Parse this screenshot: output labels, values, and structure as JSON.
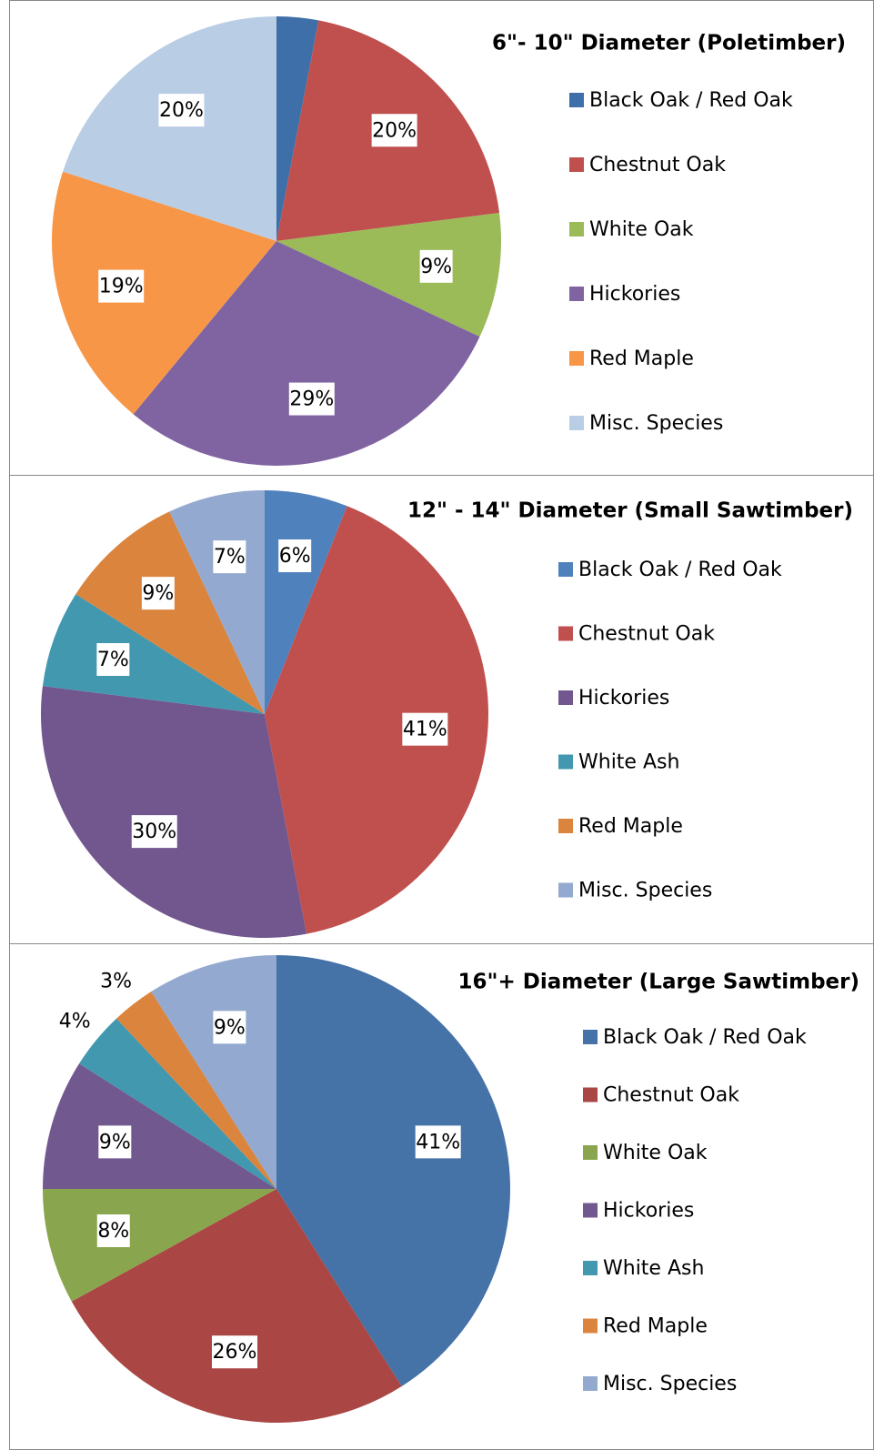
{
  "chart_data": [
    {
      "type": "pie",
      "title": "6\"- 10\" Diameter (Poletimber)",
      "categories": [
        "Black Oak / Red Oak",
        "Chestnut Oak",
        "White Oak",
        "Hickories",
        "Red Maple",
        "Misc. Species"
      ],
      "values": [
        3,
        20,
        9,
        29,
        19,
        20
      ],
      "value_labels": [
        "3%",
        "20%",
        "9%",
        "29%",
        "19%",
        "20%"
      ],
      "colors": [
        "#3f6fa8",
        "#c0504d",
        "#9bbb59",
        "#8064a2",
        "#f79646",
        "#b9cde5"
      ]
    },
    {
      "type": "pie",
      "title": "12\" - 14\" Diameter (Small Sawtimber)",
      "categories": [
        "Black Oak / Red Oak",
        "Chestnut Oak",
        "Hickories",
        "White Ash",
        "Red Maple",
        "Misc. Species"
      ],
      "values": [
        6,
        41,
        30,
        7,
        9,
        7
      ],
      "value_labels": [
        "6%",
        "41%",
        "30%",
        "7%",
        "9%",
        "7%"
      ],
      "colors": [
        "#4f81bd",
        "#c0504d",
        "#72578f",
        "#4198af",
        "#db843d",
        "#93a9cf"
      ]
    },
    {
      "type": "pie",
      "title": "16\"+ Diameter (Large Sawtimber)",
      "categories": [
        "Black Oak / Red Oak",
        "Chestnut Oak",
        "White Oak",
        "Hickories",
        "White Ash",
        "Red Maple",
        "Misc. Species"
      ],
      "values": [
        41,
        26,
        8,
        9,
        4,
        3,
        9
      ],
      "value_labels": [
        "41%",
        "26%",
        "8%",
        "9%",
        "4%",
        "3%",
        "9%"
      ],
      "colors": [
        "#4572a7",
        "#aa4643",
        "#89a54e",
        "#71588f",
        "#4198af",
        "#db843d",
        "#93a9cf"
      ]
    }
  ]
}
